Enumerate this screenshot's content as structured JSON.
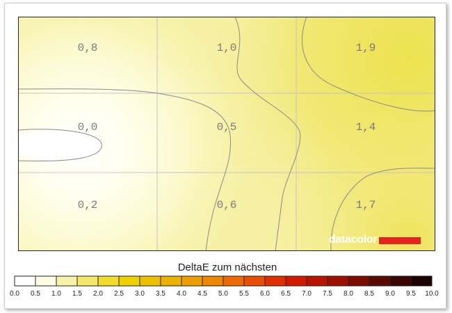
{
  "chart_data": {
    "type": "heatmap",
    "rows": 3,
    "cols": 3,
    "values": [
      [
        "0,8",
        "1,0",
        "1,9"
      ],
      [
        "0,0",
        "0,5",
        "1,4"
      ],
      [
        "0,2",
        "0,6",
        "1,7"
      ]
    ],
    "numeric_values": [
      [
        0.8,
        1.0,
        1.9
      ],
      [
        0.0,
        0.5,
        1.4
      ],
      [
        0.2,
        0.6,
        1.7
      ]
    ],
    "contour_lines": true,
    "grid": true,
    "colorbar": {
      "title": "DeltaE zum nächsten",
      "range": [
        0,
        10
      ],
      "ticks": [
        "0.0",
        "0.5",
        "1.0",
        "1.5",
        "2.0",
        "2.5",
        "3.0",
        "3.5",
        "4.0",
        "4.5",
        "5.0",
        "5.5",
        "6.0",
        "6.5",
        "7.0",
        "7.5",
        "8.0",
        "8.5",
        "9.0",
        "9.5",
        "10.0"
      ],
      "colors": [
        "#ffffff",
        "#fdfbe1",
        "#f8f1a8",
        "#f3e76c",
        "#efdc2c",
        "#eed100",
        "#edc100",
        "#eeb000",
        "#ee9d00",
        "#ee8700",
        "#ec6b00",
        "#e84e00",
        "#e03000",
        "#d21c00",
        "#b91400",
        "#9d0f00",
        "#7c0b00",
        "#5a0800",
        "#3a0500",
        "#1b0200"
      ]
    }
  },
  "brand": {
    "text": "datacolor",
    "bar_color": "#e52420"
  }
}
